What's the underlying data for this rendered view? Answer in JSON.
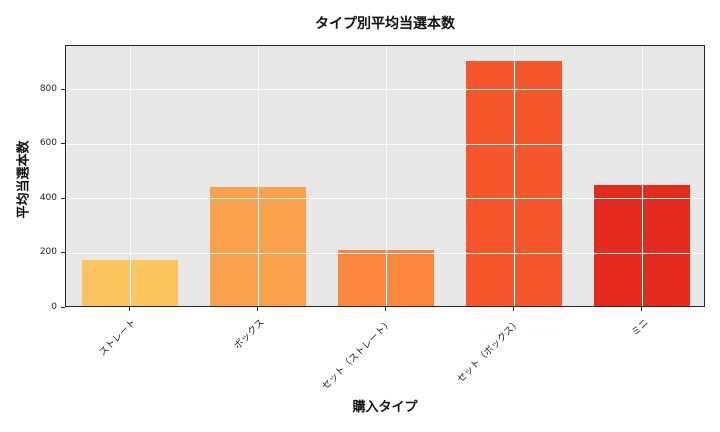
{
  "chart": {
    "title": "タイプ別平均当選本数",
    "xlabel": "購入タイプ",
    "ylabel": "平均当選本数"
  },
  "chart_data": {
    "type": "bar",
    "title": "タイプ別平均当選本数",
    "xlabel": "購入タイプ",
    "ylabel": "平均当選本数",
    "categories": [
      "ストレート",
      "ボックス",
      "セット（ストレート）",
      "セット（ボックス）",
      "ミニ"
    ],
    "values": [
      170,
      435,
      207,
      897,
      445
    ],
    "bar_colors": [
      "#FDC55F",
      "#FCA14B",
      "#FA873C",
      "#F65629",
      "#E52C1C"
    ],
    "ylim": [
      0,
      960
    ],
    "yticks": [
      0,
      200,
      400,
      600,
      800
    ],
    "grid": true,
    "legend": "none",
    "plot_bg": "#E8E8E8",
    "grid_color": "#FFFFFF",
    "bar_width_fraction": 0.75
  }
}
